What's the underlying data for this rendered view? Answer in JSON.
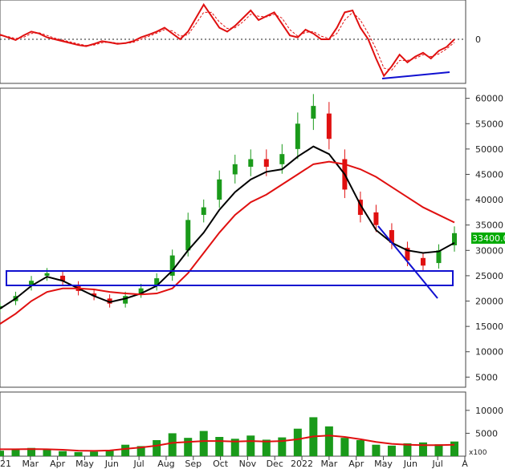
{
  "chart_data": [
    {
      "panel": "oscillator",
      "type": "line",
      "zero_label": "0",
      "ylim": [
        -1.0,
        1.0
      ],
      "series": [
        {
          "color": "#e01010",
          "style": "solid",
          "x": [
            0,
            1,
            2,
            3,
            4,
            5,
            6,
            7,
            8,
            9,
            10,
            11,
            12,
            13,
            14,
            15,
            16,
            17,
            18,
            19,
            20,
            21,
            22,
            23,
            24,
            25,
            26,
            27,
            28,
            29,
            30,
            31,
            32,
            33,
            34,
            35,
            36,
            37,
            38,
            39,
            40,
            41,
            42,
            43,
            44,
            45,
            46,
            47,
            48,
            49,
            50,
            51,
            52,
            53,
            54,
            55,
            56,
            57,
            58
          ],
          "values": [
            0.12,
            0.05,
            -0.02,
            0.1,
            0.2,
            0.15,
            0.05,
            0.0,
            -0.05,
            -0.1,
            -0.15,
            -0.18,
            -0.12,
            -0.05,
            -0.08,
            -0.12,
            -0.1,
            -0.05,
            0.05,
            0.12,
            0.2,
            0.3,
            0.15,
            0.0,
            0.2,
            0.55,
            0.9,
            0.6,
            0.3,
            0.2,
            0.35,
            0.55,
            0.75,
            0.5,
            0.6,
            0.7,
            0.4,
            0.1,
            0.05,
            0.25,
            0.15,
            0.0,
            0.0,
            0.3,
            0.7,
            0.75,
            0.3,
            0.0,
            -0.5,
            -0.95,
            -0.7,
            -0.4,
            -0.6,
            -0.45,
            -0.35,
            -0.5,
            -0.3,
            -0.2,
            0.0
          ]
        },
        {
          "color": "#e01010",
          "style": "dashed",
          "x": [
            0,
            1,
            2,
            3,
            4,
            5,
            6,
            7,
            8,
            9,
            10,
            11,
            12,
            13,
            14,
            15,
            16,
            17,
            18,
            19,
            20,
            21,
            22,
            23,
            24,
            25,
            26,
            27,
            28,
            29,
            30,
            31,
            32,
            33,
            34,
            35,
            36,
            37,
            38,
            39,
            40,
            41,
            42,
            43,
            44,
            45,
            46,
            47,
            48,
            49,
            50,
            51,
            52,
            53,
            54,
            55,
            56,
            57,
            58
          ],
          "values": [
            0.1,
            0.07,
            0.02,
            0.05,
            0.15,
            0.17,
            0.1,
            0.03,
            -0.02,
            -0.07,
            -0.12,
            -0.16,
            -0.15,
            -0.09,
            -0.07,
            -0.1,
            -0.11,
            -0.08,
            0.0,
            0.08,
            0.16,
            0.25,
            0.22,
            0.08,
            0.12,
            0.4,
            0.7,
            0.7,
            0.45,
            0.28,
            0.3,
            0.45,
            0.65,
            0.6,
            0.58,
            0.65,
            0.55,
            0.25,
            0.08,
            0.18,
            0.2,
            0.08,
            0.02,
            0.15,
            0.5,
            0.7,
            0.5,
            0.15,
            -0.25,
            -0.75,
            -0.8,
            -0.55,
            -0.55,
            -0.5,
            -0.4,
            -0.45,
            -0.38,
            -0.25,
            -0.08
          ]
        }
      ]
    },
    {
      "panel": "price",
      "type": "line",
      "yticks": [
        5000,
        10000,
        15000,
        20000,
        25000,
        30000,
        35000,
        40000,
        45000,
        50000,
        55000,
        60000
      ],
      "ylim": [
        3000,
        62000
      ],
      "last_price_label": "33400.00",
      "last_price_color": "#00aa00",
      "candle_colors": {
        "up": "#1a9a1a",
        "down": "#e01010"
      },
      "series": [
        {
          "color": "#000000",
          "style": "solid",
          "x": [
            0,
            2,
            4,
            6,
            8,
            10,
            12,
            14,
            16,
            18,
            20,
            22,
            24,
            26,
            28,
            30,
            32,
            34,
            36,
            38,
            40,
            42,
            44,
            46,
            48,
            50,
            52,
            54,
            56,
            58
          ],
          "values": [
            18500,
            20500,
            23000,
            24800,
            24000,
            22500,
            21000,
            19800,
            20500,
            21500,
            23000,
            26000,
            30000,
            33500,
            38000,
            41500,
            44000,
            45500,
            46000,
            48500,
            50500,
            49000,
            45000,
            39000,
            34000,
            31500,
            30000,
            29500,
            29800,
            31500
          ]
        },
        {
          "color": "#e01010",
          "style": "solid",
          "x": [
            0,
            2,
            4,
            6,
            8,
            10,
            12,
            14,
            16,
            18,
            20,
            22,
            24,
            26,
            28,
            30,
            32,
            34,
            36,
            38,
            40,
            42,
            44,
            46,
            48,
            50,
            52,
            54,
            56,
            58
          ],
          "values": [
            15500,
            17500,
            20000,
            21800,
            22500,
            22500,
            22300,
            21800,
            21500,
            21300,
            21500,
            22500,
            25500,
            29500,
            33500,
            37000,
            39500,
            41000,
            43000,
            45000,
            47000,
            47500,
            47000,
            46000,
            44500,
            42500,
            40500,
            38500,
            37000,
            35500
          ]
        }
      ],
      "close": [
        19000,
        21000,
        24000,
        25500,
        24000,
        22000,
        21000,
        19500,
        21000,
        22500,
        24500,
        29000,
        36000,
        38500,
        44000,
        47000,
        48000,
        46500,
        49000,
        55000,
        58500,
        52000,
        42000,
        37000,
        35000,
        31500,
        28000,
        27000,
        30000,
        33400
      ],
      "open": [
        18500,
        20000,
        23000,
        25000,
        25000,
        23000,
        21500,
        20500,
        19500,
        21500,
        23000,
        25000,
        30000,
        37000,
        40000,
        45000,
        46500,
        48000,
        47000,
        50000,
        56000,
        57000,
        48000,
        40000,
        37500,
        34000,
        30500,
        28500,
        27500,
        31000
      ]
    },
    {
      "panel": "volume",
      "type": "bar",
      "yticks": [
        5000,
        10000
      ],
      "unit_label": "x100",
      "ylim": [
        0,
        14000
      ],
      "bar_color": "#1a9a1a",
      "avg_color": "#e01010",
      "x": [
        0,
        2,
        4,
        6,
        8,
        10,
        12,
        14,
        16,
        18,
        20,
        22,
        24,
        26,
        28,
        30,
        32,
        34,
        36,
        38,
        40,
        42,
        44,
        46,
        48,
        50,
        52,
        54,
        56,
        58
      ],
      "values": [
        1200,
        1500,
        1800,
        1400,
        1100,
        900,
        1000,
        1300,
        2500,
        2200,
        3500,
        5000,
        4000,
        5500,
        4200,
        3800,
        4500,
        3600,
        4100,
        6000,
        8500,
        6500,
        4000,
        3500,
        2500,
        2300,
        2800,
        3000,
        2600,
        3200
      ],
      "avg": [
        1500,
        1500,
        1550,
        1500,
        1400,
        1200,
        1150,
        1250,
        1600,
        1900,
        2300,
        2900,
        3100,
        3300,
        3300,
        3200,
        3300,
        3200,
        3300,
        3700,
        4300,
        4500,
        4200,
        3700,
        3100,
        2700,
        2500,
        2400,
        2400,
        2500
      ],
      "x_labels": [
        "21",
        "Mar",
        "Apr",
        "May",
        "Jun",
        "Jul",
        "Aug",
        "Sep",
        "Oct",
        "Nov",
        "Dec",
        "2022",
        "Mar",
        "Apr",
        "May",
        "Jun",
        "Jul",
        "A"
      ]
    }
  ]
}
